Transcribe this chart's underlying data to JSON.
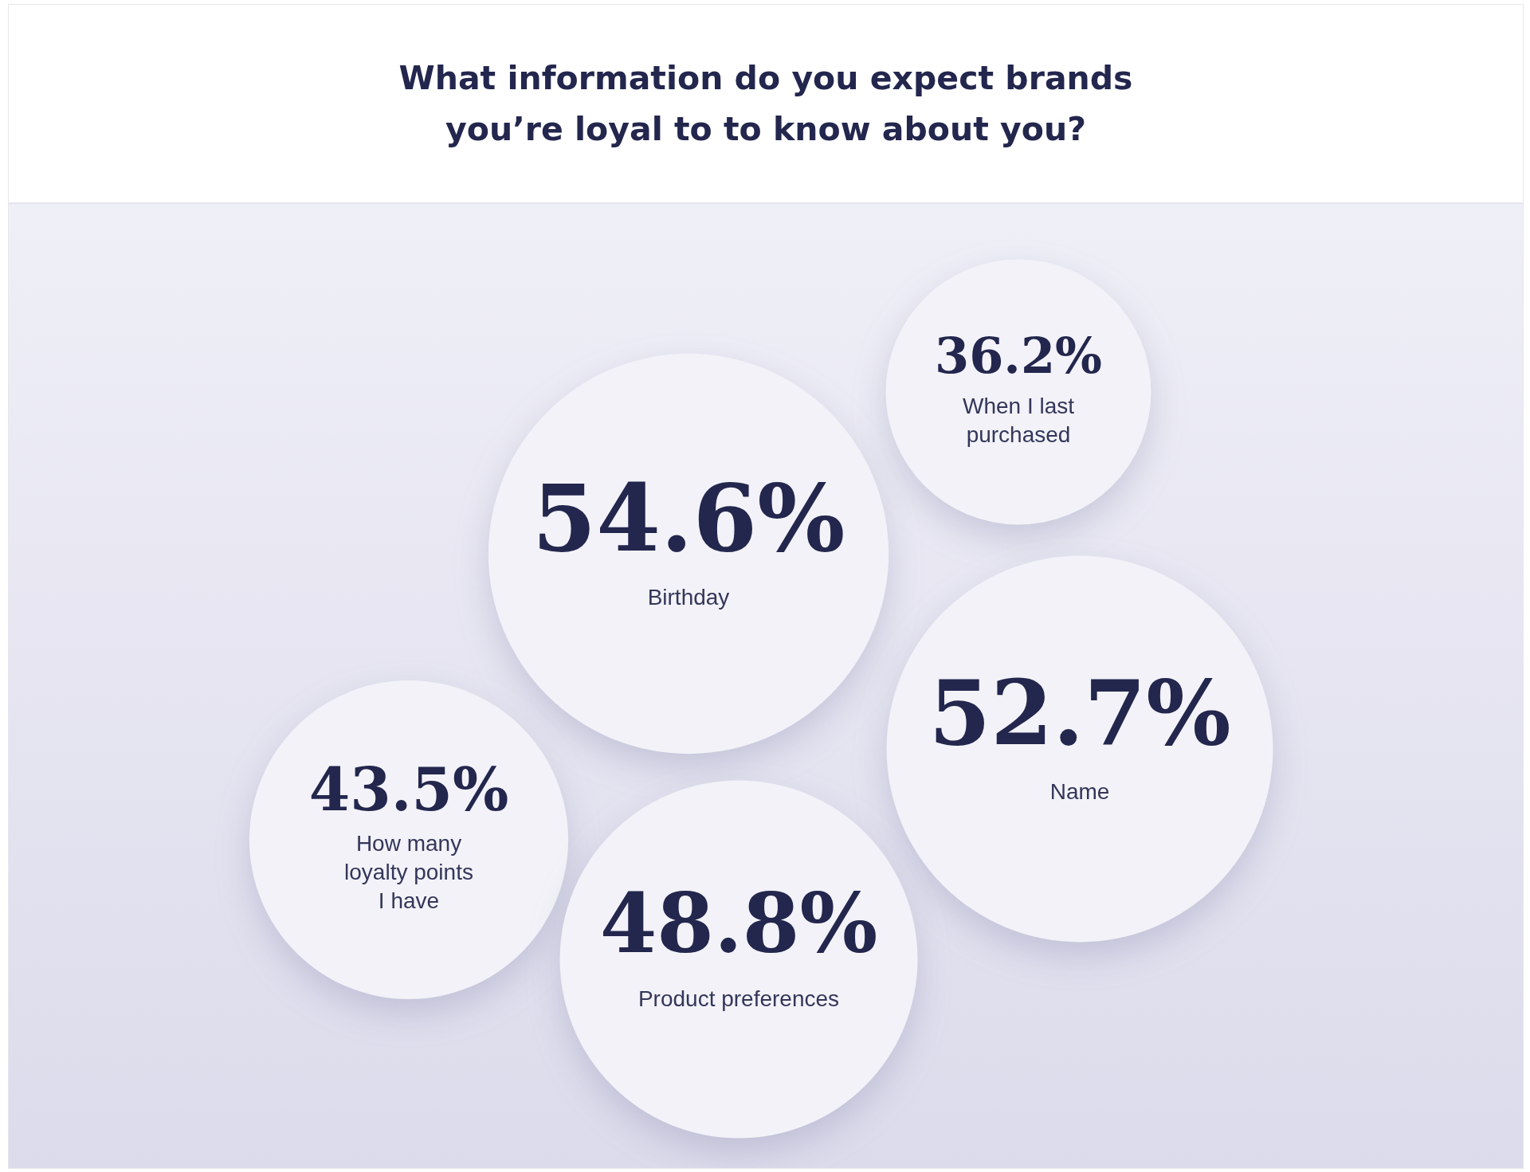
{
  "chart_data": {
    "type": "other",
    "title": "What information do you expect brands you’re loyal to to know about you?",
    "categories": [
      "When I last purchased",
      "Birthday",
      "Name",
      "How many loyalty points I have",
      "Product preferences"
    ],
    "values": [
      36.2,
      54.6,
      52.7,
      43.5,
      48.8
    ],
    "value_labels": [
      "36.2%",
      "54.6%",
      "52.7%",
      "43.5%",
      "48.8%"
    ],
    "color": "#f2f2f8"
  }
}
